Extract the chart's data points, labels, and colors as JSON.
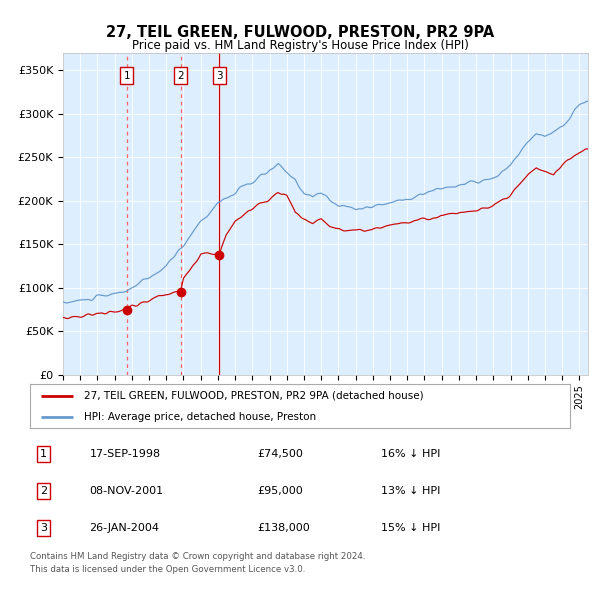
{
  "title": "27, TEIL GREEN, FULWOOD, PRESTON, PR2 9PA",
  "subtitle": "Price paid vs. HM Land Registry's House Price Index (HPI)",
  "legend_property": "27, TEIL GREEN, FULWOOD, PRESTON, PR2 9PA (detached house)",
  "legend_hpi": "HPI: Average price, detached house, Preston",
  "footer1": "Contains HM Land Registry data © Crown copyright and database right 2024.",
  "footer2": "This data is licensed under the Open Government Licence v3.0.",
  "transactions": [
    {
      "num": 1,
      "date": "17-SEP-1998",
      "price": 74500,
      "pct": "16%",
      "dir": "↓"
    },
    {
      "num": 2,
      "date": "08-NOV-2001",
      "price": 95000,
      "pct": "13%",
      "dir": "↓"
    },
    {
      "num": 3,
      "date": "26-JAN-2004",
      "price": 138000,
      "pct": "15%",
      "dir": "↓"
    }
  ],
  "transaction_dates_decimal": [
    1998.71,
    2001.84,
    2004.07
  ],
  "transaction_prices": [
    74500,
    95000,
    138000
  ],
  "color_property": "#cc0000",
  "color_hpi": "#6699cc",
  "color_vline_12": "#ff6666",
  "color_vline_3": "#cc0000",
  "plot_bg": "#ddeeff",
  "ylim": [
    0,
    370000
  ],
  "xlim_start": 1995.0,
  "xlim_end": 2025.5,
  "yticks": [
    0,
    50000,
    100000,
    150000,
    200000,
    250000,
    300000,
    350000
  ],
  "ytick_labels": [
    "£0",
    "£50K",
    "£100K",
    "£150K",
    "£200K",
    "£250K",
    "£300K",
    "£350K"
  ],
  "hpi_keypoints": [
    [
      1995.0,
      82000
    ],
    [
      1996.0,
      85000
    ],
    [
      1997.0,
      89000
    ],
    [
      1998.0,
      93000
    ],
    [
      1999.0,
      100000
    ],
    [
      2000.0,
      112000
    ],
    [
      2001.0,
      125000
    ],
    [
      2002.0,
      150000
    ],
    [
      2003.0,
      177000
    ],
    [
      2004.0,
      198000
    ],
    [
      2005.0,
      210000
    ],
    [
      2006.0,
      222000
    ],
    [
      2007.5,
      242000
    ],
    [
      2008.5,
      225000
    ],
    [
      2009.0,
      210000
    ],
    [
      2009.5,
      205000
    ],
    [
      2010.0,
      210000
    ],
    [
      2010.5,
      200000
    ],
    [
      2011.0,
      195000
    ],
    [
      2012.0,
      192000
    ],
    [
      2013.0,
      193000
    ],
    [
      2014.0,
      198000
    ],
    [
      2015.0,
      203000
    ],
    [
      2016.0,
      208000
    ],
    [
      2017.0,
      215000
    ],
    [
      2018.0,
      218000
    ],
    [
      2019.0,
      222000
    ],
    [
      2020.0,
      225000
    ],
    [
      2021.0,
      240000
    ],
    [
      2022.0,
      268000
    ],
    [
      2022.5,
      278000
    ],
    [
      2023.0,
      272000
    ],
    [
      2024.0,
      285000
    ],
    [
      2025.0,
      310000
    ],
    [
      2025.4,
      315000
    ]
  ],
  "prop_keypoints": [
    [
      1995.0,
      65000
    ],
    [
      1996.0,
      67000
    ],
    [
      1997.0,
      70000
    ],
    [
      1998.0,
      73000
    ],
    [
      1998.71,
      74500
    ],
    [
      1999.0,
      78000
    ],
    [
      2000.0,
      85000
    ],
    [
      2001.0,
      93000
    ],
    [
      2001.84,
      95000
    ],
    [
      2002.0,
      110000
    ],
    [
      2003.0,
      140000
    ],
    [
      2004.07,
      138000
    ],
    [
      2004.5,
      160000
    ],
    [
      2005.0,
      175000
    ],
    [
      2006.0,
      190000
    ],
    [
      2007.0,
      200000
    ],
    [
      2007.5,
      208000
    ],
    [
      2008.0,
      205000
    ],
    [
      2008.5,
      185000
    ],
    [
      2009.0,
      178000
    ],
    [
      2009.5,
      172000
    ],
    [
      2010.0,
      178000
    ],
    [
      2010.5,
      170000
    ],
    [
      2011.0,
      168000
    ],
    [
      2012.0,
      165000
    ],
    [
      2013.0,
      167000
    ],
    [
      2014.0,
      172000
    ],
    [
      2015.0,
      175000
    ],
    [
      2016.0,
      178000
    ],
    [
      2017.0,
      183000
    ],
    [
      2018.0,
      185000
    ],
    [
      2019.0,
      188000
    ],
    [
      2020.0,
      192000
    ],
    [
      2021.0,
      205000
    ],
    [
      2022.0,
      228000
    ],
    [
      2022.5,
      238000
    ],
    [
      2023.0,
      233000
    ],
    [
      2023.5,
      228000
    ],
    [
      2024.0,
      240000
    ],
    [
      2024.5,
      248000
    ],
    [
      2025.0,
      255000
    ],
    [
      2025.4,
      258000
    ]
  ]
}
